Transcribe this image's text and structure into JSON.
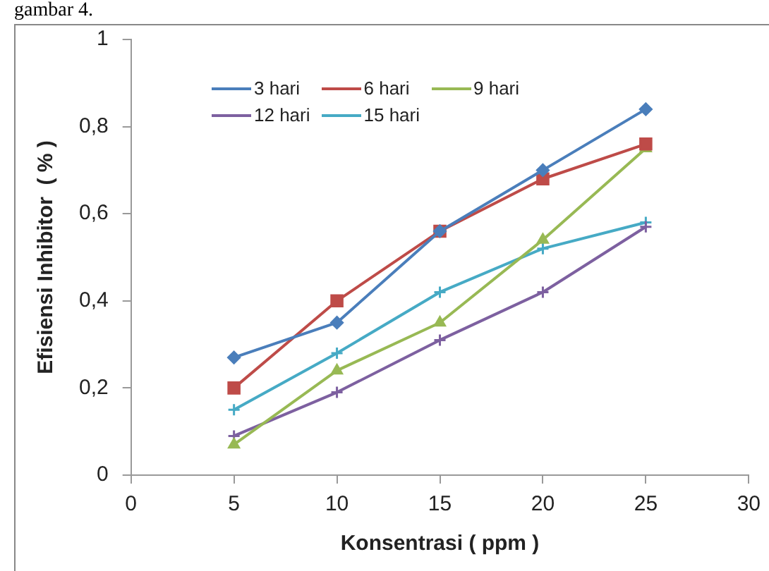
{
  "chart_data": {
    "type": "line",
    "annotations": [
      "gambar 4."
    ],
    "xlabel": "Konsentrasi ( ppm )",
    "ylabel": "Efisiensi Inhibitor  ( % )",
    "x": [
      5,
      10,
      15,
      20,
      25
    ],
    "xlim": [
      0,
      30
    ],
    "xticks": [
      0,
      5,
      10,
      15,
      20,
      25,
      30
    ],
    "ylim": [
      0,
      1
    ],
    "yticks": [
      0,
      {
        "value": 0.2,
        "label": "0,2"
      },
      {
        "value": 0.4,
        "label": "0,4"
      },
      {
        "value": 0.6,
        "label": "0,6"
      },
      {
        "value": 0.8,
        "label": "0,8"
      },
      1
    ],
    "grid": false,
    "legend": "top left",
    "line_style": "solid",
    "series": [
      {
        "name": "3 hari",
        "color": "#4a7ebb",
        "marker": "diamond",
        "values": [
          0.27,
          0.35,
          0.56,
          0.7,
          0.84
        ]
      },
      {
        "name": "6 hari",
        "color": "#be4b48",
        "marker": "square",
        "values": [
          0.2,
          0.4,
          0.56,
          0.68,
          0.76
        ]
      },
      {
        "name": "9 hari",
        "color": "#98b954",
        "marker": "triangle",
        "values": [
          0.07,
          0.24,
          0.35,
          0.54,
          0.75
        ]
      },
      {
        "name": "12 hari",
        "color": "#7d60a0",
        "marker": "cross",
        "values": [
          0.09,
          0.19,
          0.31,
          0.42,
          0.57
        ]
      },
      {
        "name": "15 hari",
        "color": "#46aac5",
        "marker": "cross",
        "values": [
          0.15,
          0.28,
          0.42,
          0.52,
          0.58
        ]
      }
    ]
  }
}
